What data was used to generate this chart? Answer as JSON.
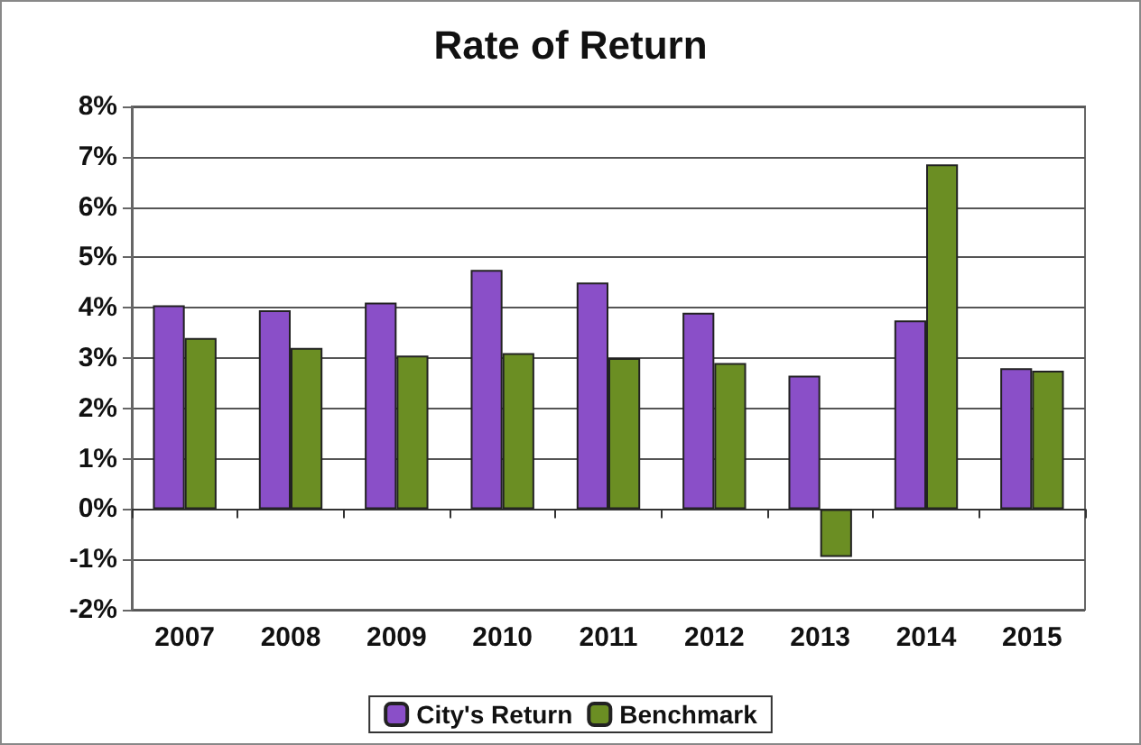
{
  "chart_data": {
    "type": "bar",
    "title": "Rate of Return",
    "categories": [
      "2007",
      "2008",
      "2009",
      "2010",
      "2011",
      "2012",
      "2013",
      "2014",
      "2015"
    ],
    "series": [
      {
        "name": "City's Return",
        "color": "#8a4fc8",
        "values": [
          4.05,
          3.95,
          4.1,
          4.75,
          4.5,
          3.9,
          2.65,
          3.75,
          2.8
        ]
      },
      {
        "name": "Benchmark",
        "color": "#6b8e23",
        "values": [
          3.4,
          3.2,
          3.05,
          3.1,
          3.0,
          2.9,
          -0.95,
          6.85,
          2.75
        ]
      }
    ],
    "ylim": [
      -2,
      8
    ],
    "yticks": [
      {
        "value": -2,
        "label": "-2%"
      },
      {
        "value": -1,
        "label": "-1%"
      },
      {
        "value": 0,
        "label": "0%"
      },
      {
        "value": 1,
        "label": "1%"
      },
      {
        "value": 2,
        "label": "2%"
      },
      {
        "value": 3,
        "label": "3%"
      },
      {
        "value": 4,
        "label": "4%"
      },
      {
        "value": 5,
        "label": "5%"
      },
      {
        "value": 6,
        "label": "6%"
      },
      {
        "value": 7,
        "label": "7%"
      },
      {
        "value": 8,
        "label": "8%"
      }
    ],
    "grid": "y",
    "legend": "bottom"
  }
}
